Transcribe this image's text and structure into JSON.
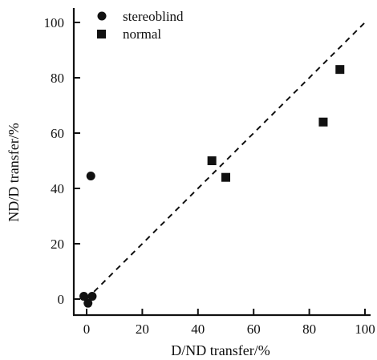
{
  "chart_data": {
    "type": "scatter",
    "title": "",
    "xlabel": "D/ND transfer/%",
    "ylabel": "ND/D transfer/%",
    "xlim": [
      -5,
      102
    ],
    "ylim": [
      -7,
      105
    ],
    "xticks": [
      0,
      20,
      40,
      60,
      80,
      100
    ],
    "yticks": [
      0,
      20,
      40,
      60,
      80,
      100
    ],
    "grid": false,
    "legend_position": "top-left",
    "reference_line": {
      "style": "dashed",
      "from": [
        0,
        0
      ],
      "to": [
        100,
        100
      ]
    },
    "series": [
      {
        "name": "stereoblind",
        "marker": "circle",
        "points": [
          {
            "x": 1.5,
            "y": 44.5
          },
          {
            "x": -1,
            "y": 1
          },
          {
            "x": 2,
            "y": 1
          },
          {
            "x": 0.5,
            "y": -1.5
          }
        ]
      },
      {
        "name": "normal",
        "marker": "square",
        "points": [
          {
            "x": 45,
            "y": 50
          },
          {
            "x": 50,
            "y": 44
          },
          {
            "x": 85,
            "y": 64
          },
          {
            "x": 91,
            "y": 83
          }
        ]
      }
    ]
  }
}
